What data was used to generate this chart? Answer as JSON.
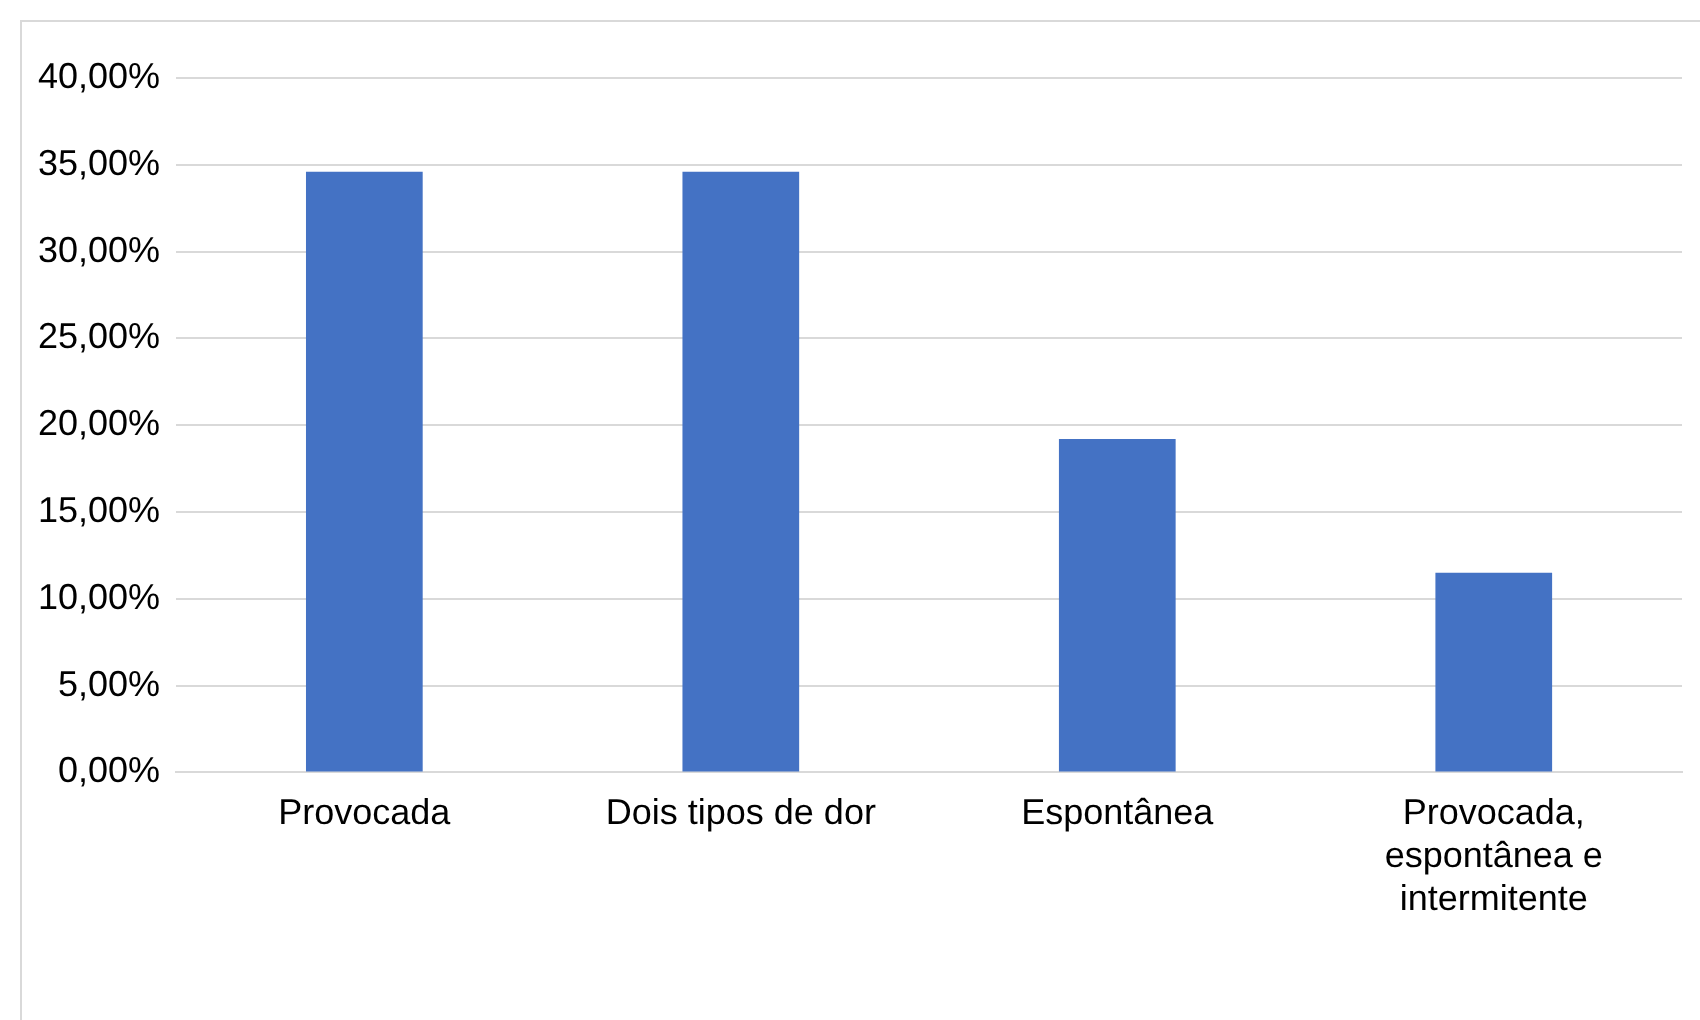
{
  "chart_data": {
    "type": "bar",
    "categories": [
      "Provocada",
      "Dois tipos de dor",
      "Espontânea",
      "Provocada, espontânea e intermitente"
    ],
    "values": [
      34.6,
      34.6,
      19.2,
      11.5
    ],
    "color": "#4472c4",
    "ylim": [
      0,
      40
    ],
    "yticks": [
      {
        "value": 0,
        "label": "0,00%"
      },
      {
        "value": 5,
        "label": "5,00%"
      },
      {
        "value": 10,
        "label": "10,00%"
      },
      {
        "value": 15,
        "label": "15,00%"
      },
      {
        "value": 20,
        "label": "20,00%"
      },
      {
        "value": 25,
        "label": "25,00%"
      },
      {
        "value": 30,
        "label": "30,00%"
      },
      {
        "value": 35,
        "label": "35,00%"
      },
      {
        "value": 40,
        "label": "40,00%"
      }
    ],
    "grid": "y",
    "legend": false
  }
}
